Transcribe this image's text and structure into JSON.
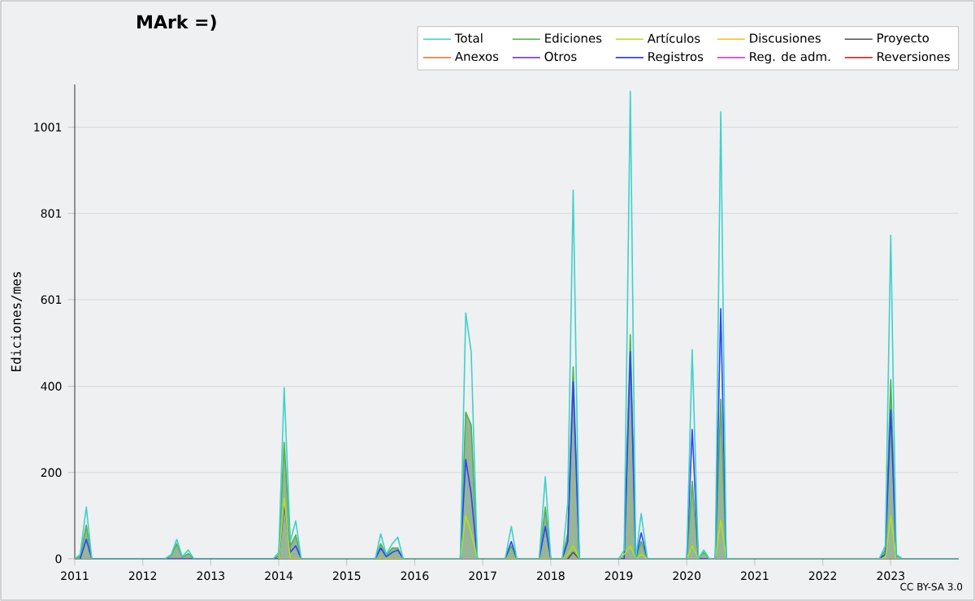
{
  "chart_data": {
    "type": "line",
    "title": "MArk =)",
    "ylabel": "Ediciones/mes",
    "annotations": [
      "CC BY-SA 3.0"
    ],
    "x": [
      "2011-01",
      "2011-02",
      "2011-03",
      "2011-04",
      "2012-05",
      "2012-06",
      "2012-07",
      "2012-08",
      "2012-09",
      "2012-10",
      "2013-12",
      "2014-01",
      "2014-02",
      "2014-03",
      "2014-04",
      "2014-05",
      "2015-06",
      "2015-07",
      "2015-08",
      "2015-09",
      "2015-10",
      "2015-11",
      "2016-09",
      "2016-10",
      "2016-11",
      "2016-12",
      "2017-05",
      "2017-06",
      "2017-07",
      "2017-11",
      "2017-12",
      "2018-01",
      "2018-03",
      "2018-04",
      "2018-05",
      "2018-06",
      "2019-01",
      "2019-02",
      "2019-03",
      "2019-04",
      "2019-05",
      "2019-06",
      "2020-01",
      "2020-02",
      "2020-03",
      "2020-04",
      "2020-05",
      "2020-06",
      "2020-07",
      "2020-08",
      "2022-11",
      "2022-12",
      "2023-01",
      "2023-02",
      "2023-03",
      "2024-01"
    ],
    "series": [
      {
        "name": "Total",
        "color": "#40d0c8",
        "values": [
          0,
          10,
          120,
          0,
          0,
          10,
          45,
          5,
          20,
          0,
          0,
          15,
          397,
          40,
          88,
          0,
          0,
          58,
          10,
          35,
          50,
          0,
          0,
          570,
          480,
          0,
          0,
          75,
          0,
          0,
          190,
          0,
          0,
          130,
          855,
          0,
          0,
          20,
          1084,
          0,
          105,
          0,
          0,
          485,
          0,
          20,
          0,
          0,
          1037,
          0,
          0,
          30,
          750,
          10,
          0,
          0
        ]
      },
      {
        "name": "Ediciones",
        "type": "area",
        "color": "#50b050",
        "x": [
          "2011-01",
          "2011-02",
          "2011-03",
          "2011-04",
          "2012-05",
          "2012-06",
          "2012-07",
          "2012-08",
          "2012-09",
          "2012-10",
          "2013-12",
          "2014-01",
          "2014-02",
          "2014-03",
          "2014-04",
          "2014-05",
          "2015-06",
          "2015-07",
          "2015-08",
          "2015-09",
          "2015-10",
          "2015-11",
          "2016-09",
          "2016-10",
          "2016-11",
          "2016-12",
          "2017-05",
          "2017-06",
          "2017-07",
          "2017-11",
          "2017-12",
          "2018-01",
          "2018-03",
          "2018-04",
          "2018-05",
          "2018-06",
          "2019-01",
          "2019-02",
          "2019-03",
          "2019-04",
          "2019-05",
          "2019-06",
          "2020-01",
          "2020-02",
          "2020-03",
          "2020-04",
          "2020-05",
          "2020-06",
          "2020-07",
          "2020-08",
          "2022-11",
          "2022-12",
          "2023-01",
          "2023-02",
          "2023-03"
        ],
        "values": [
          0,
          5,
          78,
          0,
          0,
          8,
          35,
          3,
          12,
          0,
          0,
          8,
          270,
          30,
          55,
          0,
          0,
          35,
          8,
          25,
          25,
          0,
          0,
          340,
          310,
          0,
          0,
          30,
          0,
          0,
          120,
          0,
          0,
          60,
          445,
          0,
          0,
          10,
          520,
          0,
          40,
          0,
          0,
          180,
          0,
          15,
          0,
          0,
          370,
          0,
          0,
          20,
          415,
          8,
          0
        ]
      },
      {
        "name": "Artículos",
        "color": "#b0e020",
        "x": [
          "2014-01",
          "2014-02",
          "2014-03",
          "2016-09",
          "2016-10",
          "2016-11",
          "2016-12",
          "2018-03",
          "2018-04",
          "2018-05",
          "2018-06",
          "2019-01",
          "2019-02",
          "2019-03",
          "2019-04",
          "2019-05",
          "2019-06",
          "2020-01",
          "2020-02",
          "2020-03",
          "2020-04",
          "2020-05",
          "2020-06",
          "2020-07",
          "2020-08",
          "2022-12",
          "2023-01",
          "2023-02"
        ],
        "values": [
          0,
          140,
          0,
          0,
          100,
          60,
          0,
          0,
          10,
          30,
          0,
          0,
          10,
          30,
          0,
          10,
          0,
          0,
          30,
          0,
          20,
          0,
          0,
          90,
          0,
          0,
          100,
          0
        ]
      },
      {
        "name": "Discusiones",
        "color": "#f0c020",
        "values": [
          null,
          null,
          null,
          null,
          null,
          null,
          null,
          null,
          null,
          null,
          null,
          null,
          null,
          null,
          null,
          null,
          null,
          null,
          null,
          null,
          null,
          null,
          null,
          null,
          null,
          null,
          null,
          null,
          null,
          null,
          null,
          null,
          null,
          null,
          null,
          null,
          null,
          null,
          null,
          null,
          null,
          null,
          null,
          null,
          null,
          null,
          null,
          null,
          null,
          null,
          null,
          null,
          null,
          null,
          null,
          null
        ]
      },
      {
        "name": "Proyecto",
        "color": "#505050",
        "x": [
          "2018-04",
          "2018-05",
          "2018-06"
        ],
        "values": [
          0,
          15,
          0
        ]
      },
      {
        "name": "Anexos",
        "color": "#f08040",
        "values": [
          null,
          null,
          null,
          null,
          null,
          null,
          null,
          null,
          null,
          null,
          null,
          null,
          null,
          null,
          null,
          null,
          null,
          null,
          null,
          null,
          null,
          null,
          null,
          null,
          null,
          null,
          null,
          null,
          null,
          null,
          null,
          null,
          null,
          null,
          null,
          null,
          null,
          null,
          null,
          null,
          null,
          null,
          null,
          null,
          null,
          null,
          null,
          null,
          null,
          null,
          null,
          null,
          null,
          null,
          null,
          null
        ]
      },
      {
        "name": "Otros",
        "color": "#8040f0",
        "values": [
          null,
          null,
          null,
          null,
          null,
          null,
          null,
          null,
          null,
          null,
          null,
          null,
          null,
          null,
          null,
          null,
          null,
          null,
          null,
          null,
          null,
          null,
          null,
          null,
          null,
          null,
          null,
          null,
          null,
          null,
          null,
          null,
          null,
          null,
          null,
          null,
          null,
          null,
          null,
          null,
          null,
          null,
          null,
          null,
          null,
          null,
          null,
          null,
          null,
          null,
          null,
          null,
          null,
          null,
          null,
          null
        ]
      },
      {
        "name": "Registros",
        "color": "#3040ff",
        "x": [
          "2011-02",
          "2011-03",
          "2011-04",
          "2014-01",
          "2014-02",
          "2014-03",
          "2014-04",
          "2014-05",
          "2015-06",
          "2015-07",
          "2015-08",
          "2015-09",
          "2015-10",
          "2015-11",
          "2016-09",
          "2016-10",
          "2016-11",
          "2016-12",
          "2017-05",
          "2017-06",
          "2017-07",
          "2017-11",
          "2017-12",
          "2018-01",
          "2018-03",
          "2018-04",
          "2018-05",
          "2018-06",
          "2019-02",
          "2019-03",
          "2019-04",
          "2019-05",
          "2019-06",
          "2020-01",
          "2020-02",
          "2020-03",
          "2020-06",
          "2020-07",
          "2020-08",
          "2022-11",
          "2022-12",
          "2023-01",
          "2023-02"
        ],
        "values": [
          0,
          45,
          0,
          0,
          125,
          15,
          30,
          0,
          0,
          25,
          5,
          15,
          20,
          0,
          0,
          230,
          150,
          0,
          0,
          40,
          0,
          0,
          75,
          0,
          0,
          40,
          410,
          0,
          0,
          480,
          0,
          60,
          0,
          0,
          300,
          0,
          0,
          580,
          0,
          0,
          10,
          345,
          0
        ]
      },
      {
        "name": "Reg. de adm.",
        "color": "#e040e0",
        "values": [
          null,
          null,
          null,
          null,
          null,
          null,
          null,
          null,
          null,
          null,
          null,
          null,
          null,
          null,
          null,
          null,
          null,
          null,
          null,
          null,
          null,
          null,
          null,
          null,
          null,
          null,
          null,
          null,
          null,
          null,
          null,
          null,
          null,
          null,
          null,
          null,
          null,
          null,
          null,
          null,
          null,
          null,
          null,
          null,
          null,
          null,
          null,
          null,
          null,
          null,
          null,
          null,
          null,
          null,
          null,
          null
        ]
      },
      {
        "name": "Reversiones",
        "color": "#e03030",
        "values": [
          null,
          null,
          null,
          null,
          null,
          null,
          null,
          null,
          null,
          null,
          null,
          null,
          null,
          null,
          null,
          null,
          null,
          null,
          null,
          null,
          null,
          null,
          null,
          null,
          null,
          null,
          null,
          null,
          null,
          null,
          null,
          null,
          null,
          null,
          null,
          null,
          null,
          null,
          null,
          null,
          null,
          null,
          null,
          null,
          null,
          null,
          null,
          null,
          null,
          null,
          null,
          null,
          null,
          null,
          null,
          null
        ]
      }
    ],
    "xlim": [
      "2011",
      "2024"
    ],
    "xticks": [
      "2011",
      "2012",
      "2013",
      "2014",
      "2015",
      "2016",
      "2017",
      "2018",
      "2019",
      "2020",
      "2021",
      "2022",
      "2023"
    ],
    "ylim": [
      0,
      1100
    ],
    "yticks": [
      0,
      200,
      400,
      601,
      801,
      1001
    ],
    "grid": "y",
    "legend": "top right"
  }
}
